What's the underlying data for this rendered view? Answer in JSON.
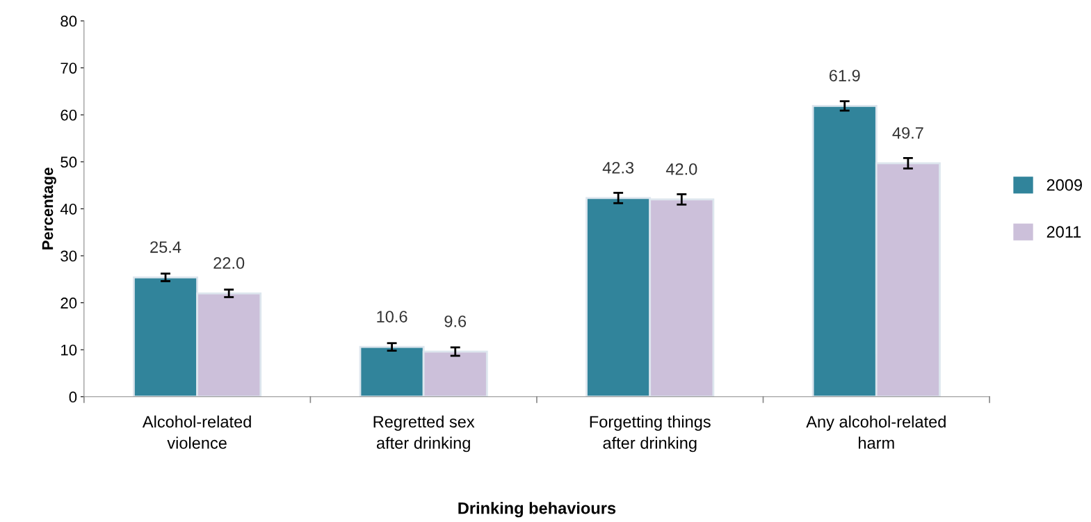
{
  "chart_data": {
    "type": "bar",
    "xlabel": "Drinking behaviours",
    "ylabel": "Percentage",
    "categories": [
      "Alcohol-related violence",
      "Regretted sex after drinking",
      "Forgetting things after drinking",
      "Any alcohol-related harm"
    ],
    "series": [
      {
        "name": "2009",
        "color": "#31849b",
        "values": [
          25.4,
          10.6,
          42.3,
          61.9
        ],
        "value_labels": [
          "25.4",
          "10.6",
          "42.3",
          "61.9"
        ],
        "errors": [
          0.8,
          0.8,
          1.1,
          1.0
        ]
      },
      {
        "name": "2011",
        "color": "#ccc0da",
        "values": [
          22.0,
          9.6,
          42.0,
          49.7
        ],
        "value_labels": [
          "22.0",
          "9.6",
          "42.0",
          "49.7"
        ],
        "errors": [
          0.8,
          0.9,
          1.1,
          1.1
        ]
      }
    ],
    "ylim": [
      0,
      80
    ],
    "yticks": [
      0,
      10,
      20,
      30,
      40,
      50,
      60,
      70,
      80
    ],
    "grid": false,
    "legend": "right"
  }
}
